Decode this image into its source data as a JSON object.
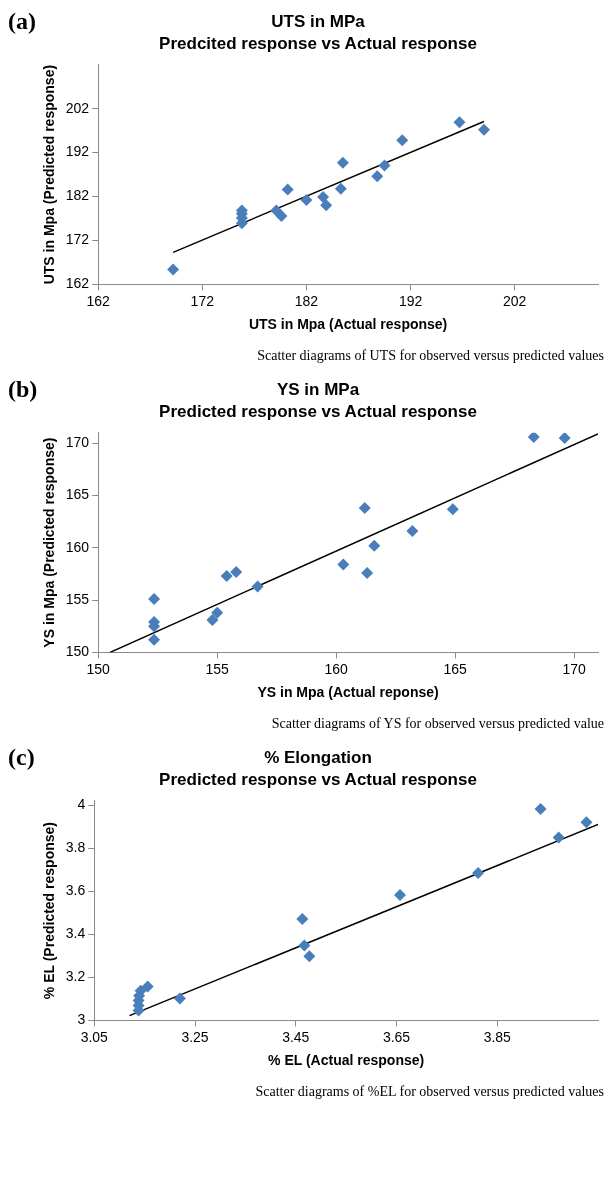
{
  "chart_data": [
    {
      "type": "scatter",
      "title": "UTS in MPa",
      "subtitle": "Predcited response vs Actual response",
      "xlabel": "UTS in Mpa (Actual response)",
      "ylabel": "UTS in Mpa (Predicted response)",
      "annotations": [
        "(a)",
        "Scatter diagrams of UTS for observed versus predicted values"
      ],
      "xlim": [
        162,
        210
      ],
      "xticks": [
        162,
        172,
        182,
        192,
        202
      ],
      "ylim": [
        162,
        212
      ],
      "yticks": [
        162,
        172,
        182,
        192,
        202
      ],
      "grid": false,
      "legend": false,
      "marker": "diamond",
      "series": [
        {
          "type": "scatter",
          "color": "#4a7ebb",
          "x": [
            169.2,
            175.8,
            175.8,
            175.8,
            175.8,
            179.1,
            179.6,
            180.2,
            182.0,
            183.6,
            183.9,
            185.3,
            185.5,
            188.8,
            189.5,
            191.2,
            196.7,
            199.05
          ],
          "values": [
            165.4,
            178.8,
            178.1,
            177.1,
            175.9,
            178.8,
            177.6,
            183.6,
            181.2,
            181.9,
            180.0,
            183.8,
            189.7,
            186.6,
            189.1,
            194.8,
            198.9,
            197.2
          ]
        },
        {
          "type": "line",
          "color": "#000000",
          "marker": "none",
          "line_style": "solid",
          "x": [
            169.2,
            199.05
          ],
          "values": [
            169.3,
            199.1
          ]
        }
      ]
    },
    {
      "type": "scatter",
      "title": "YS in MPa",
      "subtitle": "Predicted response vs Actual response",
      "xlabel": "YS in Mpa (Actual reponse)",
      "ylabel": "YS in Mpa (Predicted response)",
      "annotations": [
        "(b)",
        "Scatter diagrams of YS for observed versus predicted value"
      ],
      "xlim": [
        150,
        171
      ],
      "xticks": [
        150,
        155,
        160,
        165,
        170
      ],
      "ylim": [
        150,
        171
      ],
      "yticks": [
        150,
        155,
        160,
        165,
        170
      ],
      "grid": false,
      "legend": false,
      "marker": "diamond",
      "series": [
        {
          "type": "scatter",
          "color": "#4a7ebb",
          "x": [
            152.35,
            152.35,
            152.35,
            152.35,
            154.8,
            155.0,
            155.4,
            155.8,
            156.7,
            160.3,
            161.2,
            161.3,
            161.6,
            163.2,
            164.9,
            168.3,
            169.6
          ],
          "values": [
            155.1,
            152.9,
            152.5,
            151.2,
            153.1,
            153.8,
            157.3,
            157.7,
            156.3,
            158.4,
            163.8,
            157.6,
            160.2,
            161.6,
            163.7,
            170.6,
            170.5
          ]
        },
        {
          "type": "line",
          "color": "#000000",
          "marker": "none",
          "line_style": "solid",
          "x": [
            150.5,
            171
          ],
          "values": [
            150,
            170.9
          ]
        }
      ]
    },
    {
      "type": "scatter",
      "title": "% Elongation",
      "subtitle": "Predicted response vs Actual response",
      "xlabel": "% EL (Actual response)",
      "ylabel": "% EL (Predicted response)",
      "annotations": [
        "(c)",
        "Scatter diagrams of %EL for observed versus predicted values"
      ],
      "xlim": [
        3.05,
        4.05
      ],
      "xticks": [
        3.05,
        3.25,
        3.45,
        3.65,
        3.85
      ],
      "ylim": [
        3,
        4.02
      ],
      "yticks": [
        3,
        {
          "value": 3.2,
          "label": "3.2"
        },
        {
          "value": 3.4,
          "label": "3.4"
        },
        {
          "value": 3.6,
          "label": "3.6"
        },
        {
          "value": 3.8,
          "label": "3.8"
        },
        4
      ],
      "grid": false,
      "legend": false,
      "marker": "diamond",
      "series": [
        {
          "type": "scatter",
          "color": "#4a7ebb",
          "x": [
            3.936,
            4.027,
            3.972,
            3.812,
            3.657,
            3.463,
            3.467,
            3.477,
            3.22,
            3.156,
            3.142,
            3.138,
            3.138,
            3.138,
            3.139
          ],
          "values": [
            3.982,
            3.92,
            3.849,
            3.685,
            3.582,
            3.471,
            3.348,
            3.298,
            3.102,
            3.157,
            3.138,
            3.092,
            3.069,
            3.046,
            3.115
          ]
        },
        {
          "type": "line",
          "color": "#000000",
          "marker": "none",
          "line_style": "solid",
          "x": [
            3.12,
            4.05
          ],
          "values": [
            3.022,
            3.91
          ]
        }
      ]
    }
  ]
}
